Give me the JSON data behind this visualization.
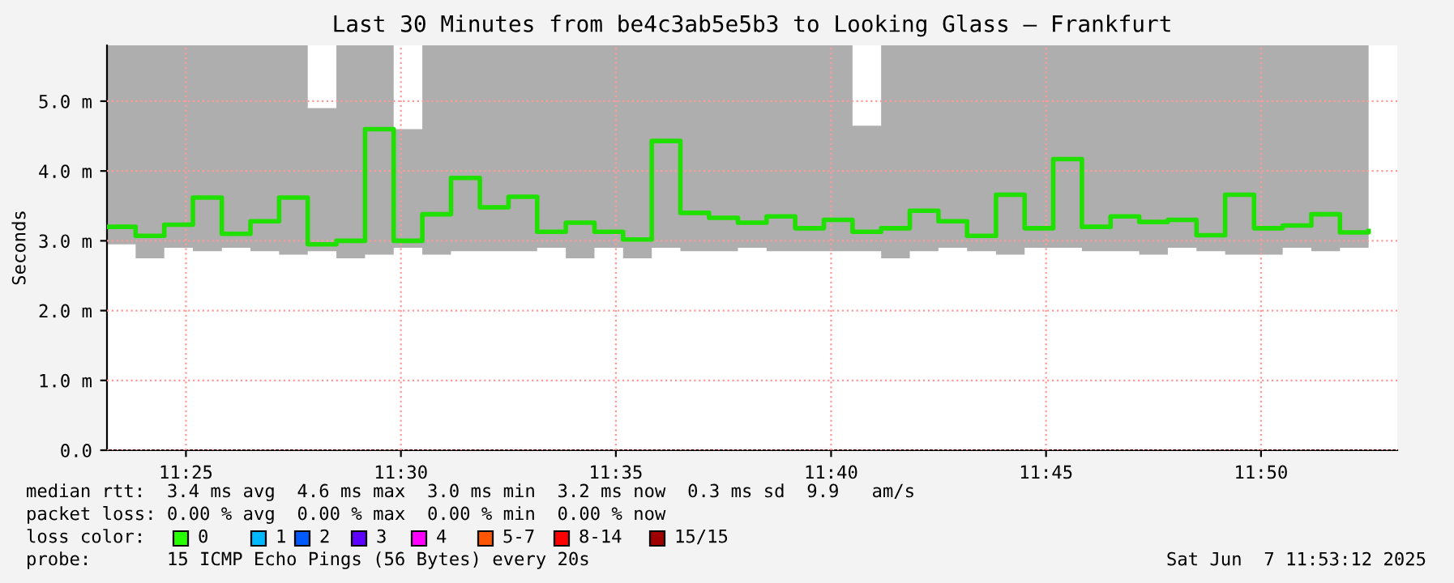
{
  "chart_data": {
    "type": "step",
    "title": "Last 30 Minutes from be4c3ab5e5b3 to Looking Glass – Frankfurt",
    "ylabel": "Seconds",
    "x": [
      11.3861,
      11.3972,
      11.4083,
      11.4194,
      11.4306,
      11.4417,
      11.4528,
      11.4639,
      11.475,
      11.4861,
      11.4972,
      11.5083,
      11.5194,
      11.5306,
      11.5417,
      11.5528,
      11.5639,
      11.575,
      11.5861,
      11.5972,
      11.6083,
      11.6194,
      11.6306,
      11.6417,
      11.6528,
      11.6639,
      11.675,
      11.6861,
      11.6972,
      11.7083,
      11.7194,
      11.7306,
      11.7417,
      11.7528,
      11.7639,
      11.775,
      11.7861,
      11.7972,
      11.8083,
      11.8194,
      11.8306,
      11.8417,
      11.8528,
      11.8639,
      11.875
    ],
    "series": [
      {
        "color": "#20e000",
        "values": [
          3.2,
          3.07,
          3.23,
          3.62,
          3.1,
          3.28,
          3.62,
          2.95,
          3.0,
          4.6,
          3.0,
          3.38,
          3.9,
          3.48,
          3.63,
          3.13,
          3.26,
          3.13,
          3.02,
          4.43,
          3.4,
          3.33,
          3.26,
          3.35,
          3.18,
          3.3,
          3.13,
          3.18,
          3.43,
          3.28,
          3.07,
          3.66,
          3.18,
          4.17,
          3.2,
          3.35,
          3.27,
          3.3,
          3.08,
          3.66,
          3.18,
          3.22,
          3.38,
          3.12,
          3.14
        ],
        "lower": [
          2.95,
          2.75,
          2.9,
          2.85,
          2.9,
          2.85,
          2.8,
          2.85,
          2.75,
          2.8,
          2.9,
          2.8,
          2.85,
          2.85,
          2.85,
          2.9,
          2.75,
          2.9,
          2.75,
          2.9,
          2.85,
          2.85,
          2.9,
          2.85,
          2.85,
          2.85,
          2.85,
          2.75,
          2.85,
          2.9,
          2.85,
          2.8,
          2.9,
          2.9,
          2.85,
          2.85,
          2.8,
          2.9,
          2.85,
          2.8,
          2.8,
          2.9,
          2.85,
          2.9,
          2.9
        ],
        "upper": [
          5.8,
          5.8,
          5.8,
          5.8,
          5.8,
          5.8,
          5.8,
          4.9,
          5.8,
          5.8,
          4.6,
          5.8,
          5.8,
          5.8,
          5.8,
          5.8,
          5.8,
          5.8,
          5.8,
          5.8,
          5.8,
          5.8,
          5.8,
          5.8,
          5.8,
          5.8,
          4.65,
          5.8,
          5.8,
          5.8,
          5.8,
          5.8,
          5.8,
          5.8,
          5.8,
          5.8,
          5.8,
          5.8,
          5.8,
          5.8,
          5.8,
          5.8,
          5.8,
          5.8,
          5.8
        ]
      }
    ],
    "xlim": [
      11.3861,
      11.8861
    ],
    "xticks": [
      {
        "value": 11.4167,
        "label": "11:25"
      },
      {
        "value": 11.5,
        "label": "11:30"
      },
      {
        "value": 11.5833,
        "label": "11:35"
      },
      {
        "value": 11.6667,
        "label": "11:40"
      },
      {
        "value": 11.75,
        "label": "11:45"
      },
      {
        "value": 11.8333,
        "label": "11:50"
      }
    ],
    "ylim": [
      0,
      5.8
    ],
    "yticks": [
      {
        "value": 0,
        "label": "0.0"
      },
      {
        "value": 1,
        "label": "1.0 m"
      },
      {
        "value": 2,
        "label": "2.0 m"
      },
      {
        "value": 3,
        "label": "3.0 m"
      },
      {
        "value": 4,
        "label": "4.0 m"
      },
      {
        "value": 5,
        "label": "5.0 m"
      }
    ],
    "grid": true,
    "annotations": [
      "median rtt:  3.4 ms avg  4.6 ms max  3.0 ms min  3.2 ms now  0.3 ms sd  9.9   am/s",
      "packet loss: 0.00 % avg  0.00 % max  0.00 % min  0.00 % now",
      "loss color:",
      "0",
      "1",
      "2",
      "3",
      "4",
      "5-7",
      "8-14",
      "15/15",
      "probe:       15 ICMP Echo Pings (56 Bytes) every 20s",
      "Sat Jun  7 11:53:12 2025"
    ]
  }
}
